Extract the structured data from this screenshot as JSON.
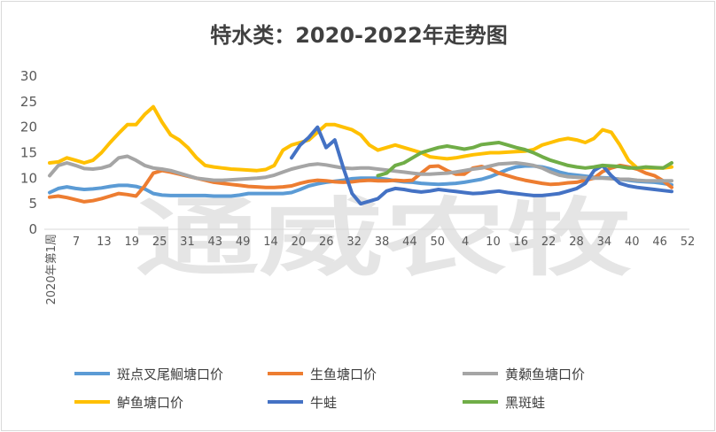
{
  "chart_data": {
    "type": "line",
    "title": "特水类：2020-2022年走势图",
    "xlabel": "",
    "ylabel": "",
    "ylim": [
      0,
      30
    ],
    "yticks": [
      0,
      5,
      10,
      15,
      20,
      25,
      30
    ],
    "first_xtick_label": "2020年第1周",
    "xticks": [
      "7",
      "13",
      "19",
      "25",
      "31",
      "43",
      "49",
      "14",
      "20",
      "26",
      "32",
      "38",
      "44",
      "50",
      "4",
      "10",
      "16",
      "22",
      "28",
      "34",
      "40",
      "46",
      "52"
    ],
    "watermark": "通威农牧",
    "grid": false,
    "legend_position": "bottom",
    "series": [
      {
        "name": "斑点叉尾鮰塘口价",
        "color": "#5B9BD5",
        "values": [
          7.2,
          8.0,
          8.3,
          8.0,
          7.8,
          7.9,
          8.1,
          8.4,
          8.6,
          8.6,
          8.4,
          7.9,
          7.0,
          6.7,
          6.6,
          6.6,
          6.6,
          6.6,
          6.6,
          6.5,
          6.5,
          6.5,
          6.7,
          7.0,
          7.0,
          7.0,
          7.0,
          7.0,
          7.2,
          7.8,
          8.5,
          8.9,
          9.2,
          9.4,
          9.6,
          9.9,
          10.0,
          10.0,
          10.0,
          9.8,
          9.5,
          9.3,
          9.2,
          9.0,
          8.9,
          8.8,
          8.9,
          9.0,
          9.2,
          9.5,
          9.8,
          10.3,
          11.0,
          11.7,
          12.2,
          12.4,
          12.4,
          12.2,
          11.8,
          11.2,
          10.8,
          10.6,
          10.4,
          10.2,
          10.1,
          10.0,
          9.8,
          9.6,
          9.4,
          9.3,
          9.2,
          9.0,
          8.7
        ]
      },
      {
        "name": "生鱼塘口价",
        "color": "#ED7D31",
        "values": [
          6.3,
          6.5,
          6.2,
          5.8,
          5.4,
          5.6,
          6.0,
          6.5,
          7.0,
          6.8,
          6.5,
          8.5,
          11.0,
          11.5,
          11.2,
          10.8,
          10.4,
          10.0,
          9.6,
          9.2,
          9.0,
          8.8,
          8.6,
          8.4,
          8.3,
          8.2,
          8.2,
          8.3,
          8.5,
          9.0,
          9.4,
          9.6,
          9.5,
          9.3,
          9.2,
          9.3,
          9.5,
          9.6,
          9.5,
          9.5,
          9.6,
          9.5,
          9.6,
          11.0,
          12.3,
          12.4,
          11.5,
          10.8,
          10.8,
          12.0,
          12.3,
          11.8,
          11.0,
          10.5,
          10.0,
          9.6,
          9.3,
          9.0,
          8.8,
          8.9,
          9.1,
          9.2,
          9.6,
          10.0,
          11.3,
          12.0,
          12.5,
          12.2,
          11.8,
          11.0,
          10.5,
          9.5,
          8.2
        ]
      },
      {
        "name": "黄颡鱼塘口价",
        "color": "#A5A5A5",
        "values": [
          10.5,
          12.5,
          13.0,
          12.5,
          11.9,
          11.8,
          12.0,
          12.5,
          14.0,
          14.3,
          13.5,
          12.5,
          12.0,
          11.8,
          11.5,
          11.0,
          10.5,
          10.0,
          9.8,
          9.6,
          9.6,
          9.7,
          9.8,
          9.9,
          10.0,
          10.2,
          10.6,
          11.2,
          11.8,
          12.2,
          12.6,
          12.8,
          12.6,
          12.3,
          12.0,
          11.9,
          12.0,
          12.0,
          11.8,
          11.6,
          11.4,
          11.2,
          11.0,
          10.8,
          10.8,
          10.9,
          11.0,
          11.2,
          11.5,
          11.8,
          12.0,
          12.4,
          12.8,
          12.9,
          13.0,
          12.8,
          12.5,
          12.0,
          11.2,
          10.6,
          10.3,
          10.2,
          10.1,
          10.0,
          10.0,
          9.9,
          9.8,
          9.8,
          9.6,
          9.5,
          9.5,
          9.5,
          9.5
        ]
      },
      {
        "name": "鲈鱼塘口价",
        "color": "#FFC000",
        "values": [
          13.0,
          13.2,
          14.0,
          13.5,
          13.0,
          13.5,
          15.0,
          17.0,
          18.8,
          20.5,
          20.5,
          22.5,
          24.0,
          21.0,
          18.5,
          17.5,
          16.0,
          14.0,
          12.5,
          12.2,
          12.0,
          11.8,
          11.7,
          11.6,
          11.5,
          11.7,
          12.5,
          15.5,
          16.5,
          17.0,
          17.5,
          19.0,
          20.5,
          20.5,
          20.0,
          19.5,
          18.5,
          16.5,
          15.5,
          16.0,
          16.5,
          16.0,
          15.5,
          15.0,
          14.2,
          14.0,
          13.8,
          14.0,
          14.3,
          14.6,
          14.8,
          15.0,
          15.0,
          15.1,
          15.2,
          15.3,
          15.6,
          16.5,
          17.0,
          17.5,
          17.8,
          17.5,
          17.0,
          17.8,
          19.5,
          19.0,
          16.5,
          13.5,
          12.0,
          12.0,
          12.0,
          12.0,
          12.2
        ]
      },
      {
        "name": "牛蛙",
        "color": "#4472C4",
        "values": [
          null,
          null,
          null,
          null,
          null,
          null,
          null,
          null,
          null,
          null,
          null,
          null,
          null,
          null,
          null,
          null,
          null,
          null,
          null,
          null,
          null,
          null,
          null,
          null,
          null,
          null,
          null,
          null,
          14.0,
          16.5,
          18.0,
          20.0,
          16.0,
          17.5,
          12.0,
          7.0,
          5.0,
          5.5,
          6.0,
          7.5,
          8.0,
          7.8,
          7.5,
          7.3,
          7.5,
          7.8,
          7.6,
          7.4,
          7.2,
          7.0,
          7.1,
          7.3,
          7.5,
          7.2,
          7.0,
          6.8,
          6.6,
          6.6,
          6.8,
          7.0,
          7.5,
          8.0,
          9.0,
          11.5,
          12.5,
          10.5,
          9.0,
          8.5,
          8.2,
          8.0,
          7.8,
          7.6,
          7.4
        ]
      },
      {
        "name": "黑斑蛙",
        "color": "#70AD47",
        "values": [
          null,
          null,
          null,
          null,
          null,
          null,
          null,
          null,
          null,
          null,
          null,
          null,
          null,
          null,
          null,
          null,
          null,
          null,
          null,
          null,
          null,
          null,
          null,
          null,
          null,
          null,
          null,
          null,
          null,
          null,
          null,
          null,
          null,
          null,
          null,
          null,
          null,
          null,
          10.5,
          11.0,
          12.5,
          13.0,
          14.0,
          15.0,
          15.5,
          16.0,
          16.3,
          16.0,
          15.7,
          16.0,
          16.6,
          16.8,
          17.0,
          16.5,
          16.0,
          15.6,
          15.0,
          14.2,
          13.5,
          13.0,
          12.5,
          12.2,
          12.0,
          12.2,
          12.5,
          12.4,
          12.3,
          12.0,
          12.0,
          12.2,
          12.1,
          12.0,
          13.0
        ]
      }
    ]
  }
}
